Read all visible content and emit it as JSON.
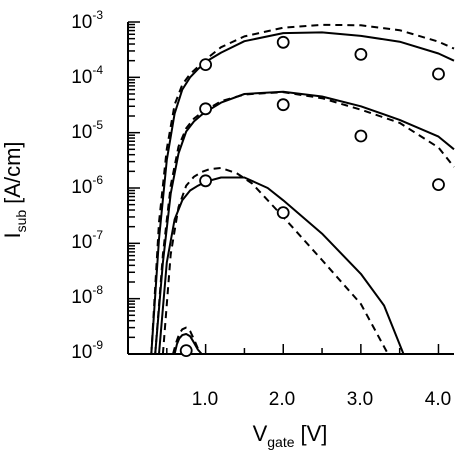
{
  "chart_data": {
    "type": "line",
    "title": "",
    "xlabel": {
      "main": "V",
      "sub": "gate",
      "unit": "[V]"
    },
    "ylabel": {
      "main": "I",
      "sub": "sub",
      "unit": "[A/cm]"
    },
    "x_ticks": [
      "1.0",
      "2.0",
      "3.0",
      "4.0"
    ],
    "y_ticks": [
      {
        "base": "10",
        "exp": "-3"
      },
      {
        "base": "10",
        "exp": "-4"
      },
      {
        "base": "10",
        "exp": "-5"
      },
      {
        "base": "10",
        "exp": "-6"
      },
      {
        "base": "10",
        "exp": "-7"
      },
      {
        "base": "10",
        "exp": "-8"
      },
      {
        "base": "10",
        "exp": "-9"
      }
    ],
    "xlim": [
      0.0,
      4.2
    ],
    "ylim_log10": [
      -9,
      -3
    ],
    "y_scale": "log",
    "grid": false,
    "legend": "none",
    "series": [
      {
        "style": "solid",
        "x": [
          0.3,
          0.4,
          0.5,
          0.6,
          0.7,
          0.8,
          0.9,
          1.0,
          1.2,
          1.5,
          2.0,
          2.5,
          3.0,
          3.5,
          4.0,
          4.2
        ],
        "y": [
          1e-09,
          1.2e-07,
          3.2e-06,
          2.2e-05,
          6e-05,
          0.0001,
          0.00014,
          0.00019,
          0.00028,
          0.00045,
          0.00063,
          0.00065,
          0.00056,
          0.00044,
          0.00027,
          0.0002
        ]
      },
      {
        "style": "dashed",
        "x": [
          0.3,
          0.4,
          0.5,
          0.6,
          0.7,
          0.8,
          0.9,
          1.0,
          1.2,
          1.5,
          2.0,
          2.5,
          3.0,
          3.5,
          4.0,
          4.2
        ],
        "y": [
          1e-09,
          2.4e-07,
          5.1e-06,
          3.2e-05,
          7.4e-05,
          0.000115,
          0.000155,
          0.00021,
          0.00035,
          0.00055,
          0.00079,
          0.00089,
          0.00087,
          0.00071,
          0.00044,
          0.00033
        ]
      },
      {
        "style": "solid",
        "x": [
          0.35,
          0.45,
          0.55,
          0.65,
          0.75,
          0.85,
          0.95,
          1.05,
          1.2,
          1.5,
          2.0,
          2.5,
          3.0,
          3.5,
          4.0,
          4.2
        ],
        "y": [
          1e-09,
          4.5e-08,
          7.9e-07,
          4.2e-06,
          1.05e-05,
          1.6e-05,
          2.1e-05,
          2.6e-05,
          3.5e-05,
          5e-05,
          5.5e-05,
          4.5e-05,
          3e-05,
          1.7e-05,
          8.5e-06,
          5e-06
        ]
      },
      {
        "style": "dashed",
        "x": [
          0.35,
          0.45,
          0.55,
          0.65,
          0.75,
          0.85,
          0.95,
          1.05,
          1.2,
          1.5,
          2.0,
          2.5,
          3.0,
          3.5,
          4.0,
          4.2
        ],
        "y": [
          1e-09,
          6.3e-08,
          1.1e-06,
          5.6e-06,
          1.2e-05,
          1.8e-05,
          2.3e-05,
          2.8e-05,
          3.7e-05,
          4.9e-05,
          5.4e-05,
          4.2e-05,
          2.6e-05,
          1.5e-05,
          5.4e-06,
          2.4e-06
        ]
      },
      {
        "style": "solid",
        "x": [
          0.4,
          0.5,
          0.6,
          0.7,
          0.8,
          0.9,
          1.0,
          1.2,
          1.5,
          1.8,
          2.0,
          2.5,
          3.0,
          3.3,
          3.55
        ],
        "y": [
          1e-09,
          4.5e-08,
          2.7e-07,
          6e-07,
          9e-07,
          1.1e-06,
          1.3e-06,
          1.55e-06,
          1.55e-06,
          1e-06,
          6e-07,
          1.5e-07,
          2.8e-08,
          7.5e-09,
          1e-09
        ]
      },
      {
        "style": "dashed",
        "x": [
          0.45,
          0.55,
          0.65,
          0.75,
          0.85,
          0.95,
          1.05,
          1.2,
          1.4,
          1.6,
          2.0,
          2.5,
          3.0,
          3.35
        ],
        "y": [
          1e-09,
          6.3e-08,
          4.5e-07,
          1.1e-06,
          1.6e-06,
          1.95e-06,
          2.2e-06,
          2.3e-06,
          1.85e-06,
          1.2e-06,
          3e-07,
          5e-08,
          8e-09,
          1e-09
        ]
      },
      {
        "style": "solid",
        "x": [
          0.6,
          0.63,
          0.66,
          0.7,
          0.75,
          0.8,
          0.85,
          0.9,
          0.95
        ],
        "y": [
          1e-09,
          1.5e-09,
          1.9e-09,
          2.2e-09,
          2.3e-09,
          2.1e-09,
          1.6e-09,
          1.2e-09,
          1e-09
        ]
      },
      {
        "style": "dashed",
        "x": [
          0.58,
          0.62,
          0.66,
          0.7,
          0.75,
          0.8,
          0.86,
          0.93
        ],
        "y": [
          1e-09,
          1.6e-09,
          2.3e-09,
          2.8e-09,
          3e-09,
          2.6e-09,
          1.7e-09,
          1e-09
        ]
      }
    ],
    "markers": [
      {
        "x": 1.0,
        "y": 0.00017
      },
      {
        "x": 2.0,
        "y": 0.00043
      },
      {
        "x": 3.0,
        "y": 0.00026
      },
      {
        "x": 4.0,
        "y": 0.000115
      },
      {
        "x": 1.0,
        "y": 2.7e-05
      },
      {
        "x": 2.0,
        "y": 3.2e-05
      },
      {
        "x": 3.0,
        "y": 8.7e-06
      },
      {
        "x": 4.0,
        "y": 1.15e-06
      },
      {
        "x": 1.0,
        "y": 1.35e-06
      },
      {
        "x": 2.0,
        "y": 3.6e-07
      },
      {
        "x": 0.75,
        "y": 1.15e-09
      }
    ]
  }
}
